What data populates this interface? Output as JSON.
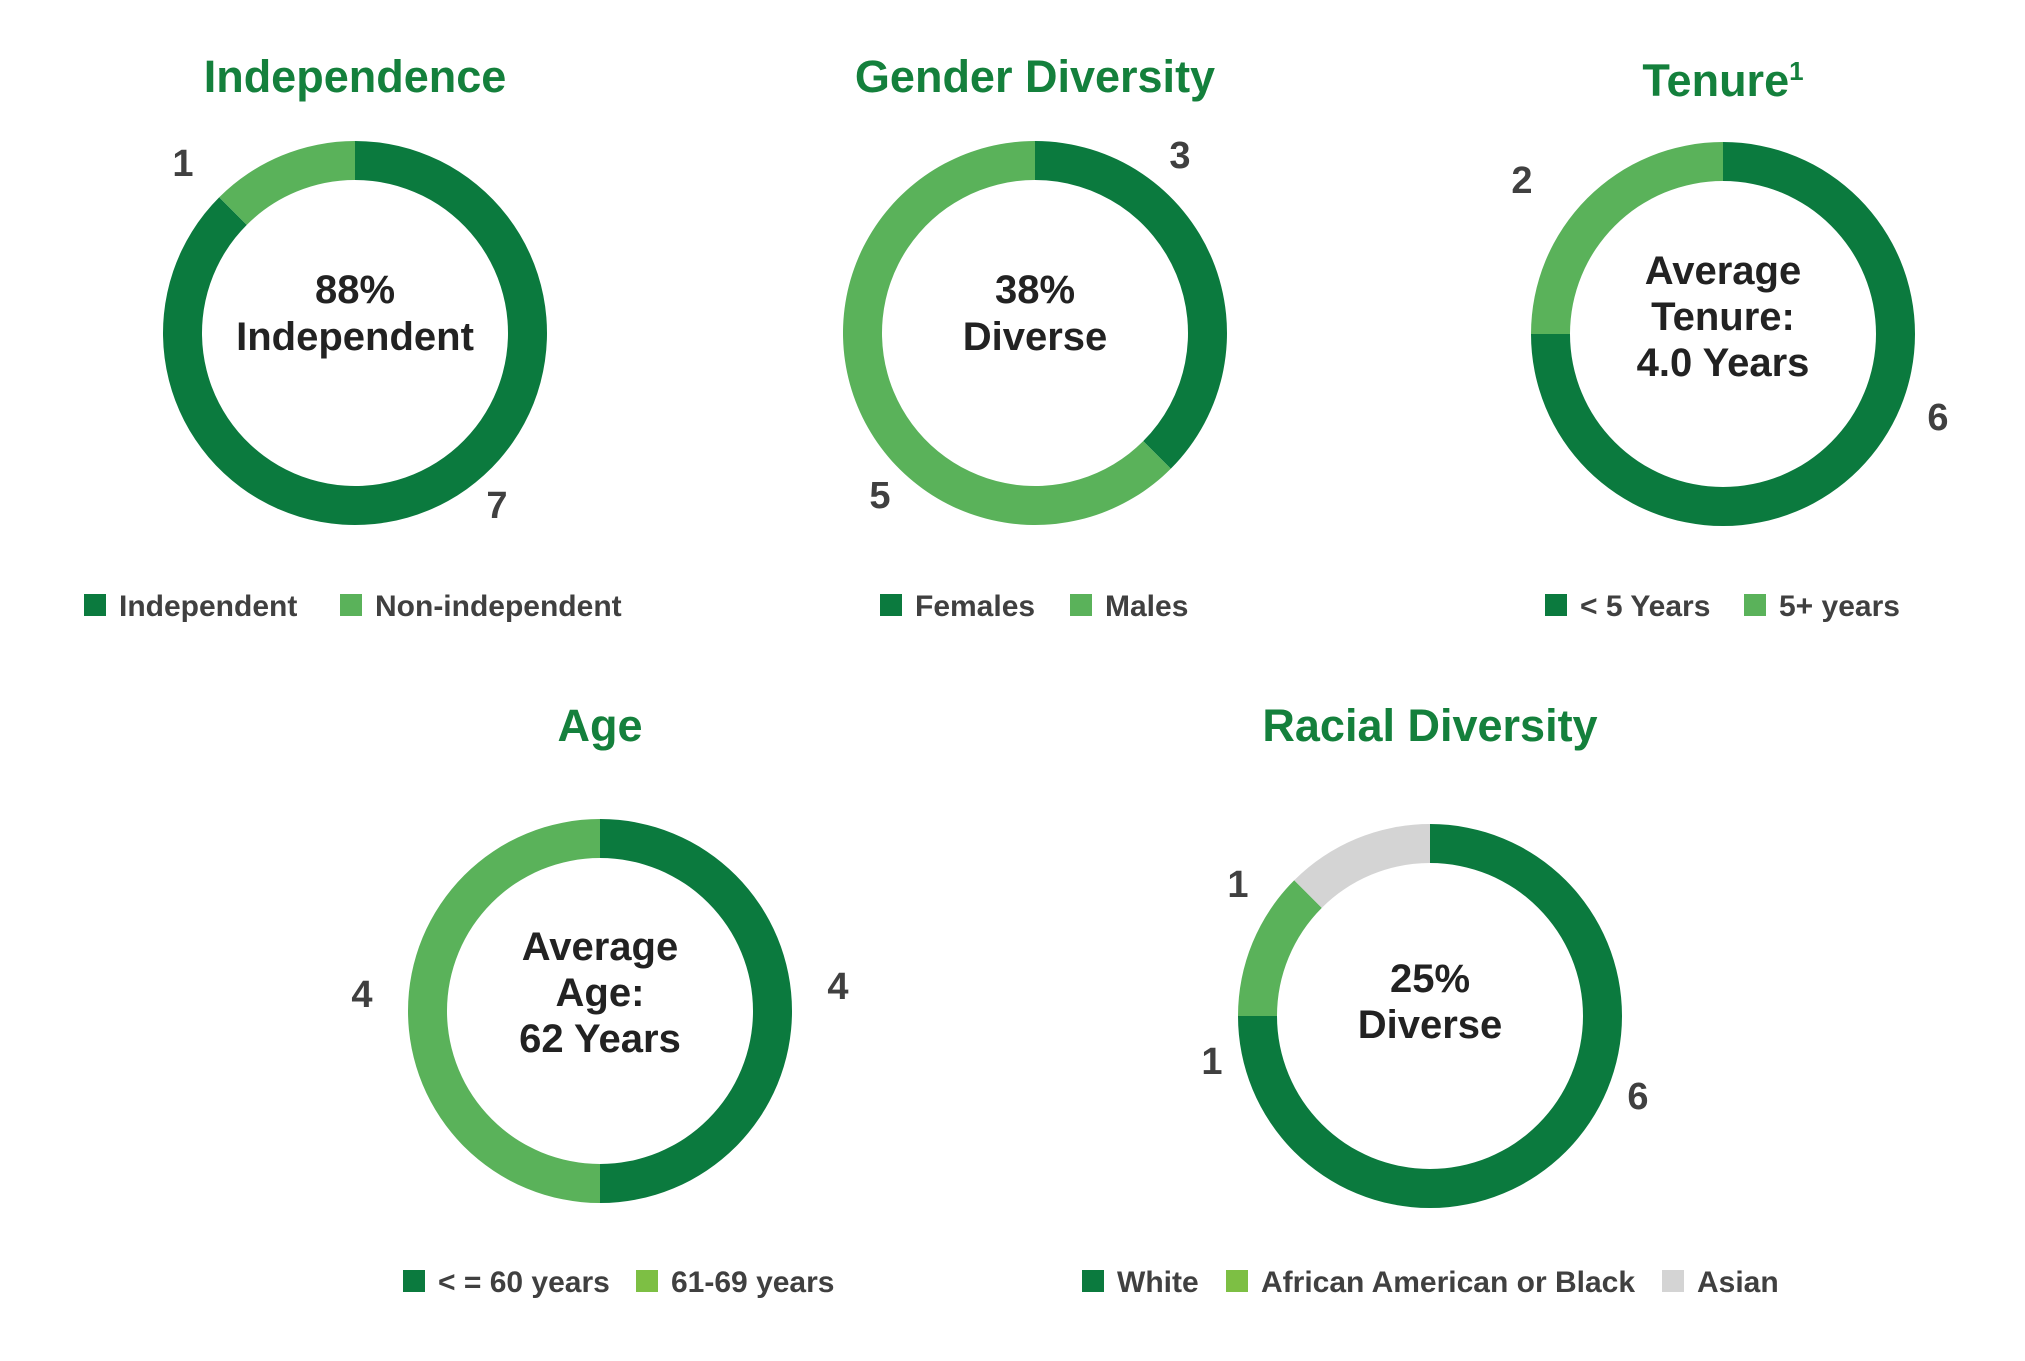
{
  "colors": {
    "title": "#14803c",
    "dark_green": "#0b7a3e",
    "light_green": "#5ab25a",
    "lime_green": "#7dbf44",
    "gray": "#d4d4d4"
  },
  "chart_data": [
    {
      "type": "pie",
      "style": "donut",
      "title": "Independence",
      "center_text": [
        "88%",
        "Independent"
      ],
      "categories": [
        "Independent",
        "Non-independent"
      ],
      "values": [
        7,
        1
      ],
      "colors": [
        "#0b7a3e",
        "#5ab25a"
      ],
      "legend_colors": [
        "#0b7a3e",
        "#5ab25a"
      ]
    },
    {
      "type": "pie",
      "style": "donut",
      "title": "Gender Diversity",
      "center_text": [
        "38%",
        "Diverse"
      ],
      "categories": [
        "Females",
        "Males"
      ],
      "values": [
        3,
        5
      ],
      "colors": [
        "#0b7a3e",
        "#5ab25a"
      ],
      "legend_colors": [
        "#0b7a3e",
        "#5ab25a"
      ]
    },
    {
      "type": "pie",
      "style": "donut",
      "title": "Tenure",
      "title_superscript": "1",
      "center_text": [
        "Average",
        "Tenure:",
        "4.0 Years"
      ],
      "categories": [
        "< 5 Years",
        "5+ years"
      ],
      "values": [
        6,
        2
      ],
      "colors": [
        "#0b7a3e",
        "#5ab25a"
      ],
      "legend_colors": [
        "#0b7a3e",
        "#5ab25a"
      ]
    },
    {
      "type": "pie",
      "style": "donut",
      "title": "Age",
      "center_text": [
        "Average",
        "Age:",
        "62 Years"
      ],
      "categories": [
        "< = 60 years",
        "61-69 years"
      ],
      "values": [
        4,
        4
      ],
      "colors": [
        "#0b7a3e",
        "#5ab25a"
      ],
      "legend_colors": [
        "#0b7a3e",
        "#7dbf44"
      ]
    },
    {
      "type": "pie",
      "style": "donut",
      "title": "Racial Diversity",
      "center_text": [
        "25%",
        "Diverse"
      ],
      "categories": [
        "White",
        "African American or Black",
        "Asian"
      ],
      "values": [
        6,
        1,
        1
      ],
      "colors": [
        "#0b7a3e",
        "#5ab25a",
        "#d4d4d4"
      ],
      "legend_colors": [
        "#0b7a3e",
        "#7dbf44",
        "#d4d4d4"
      ]
    }
  ]
}
